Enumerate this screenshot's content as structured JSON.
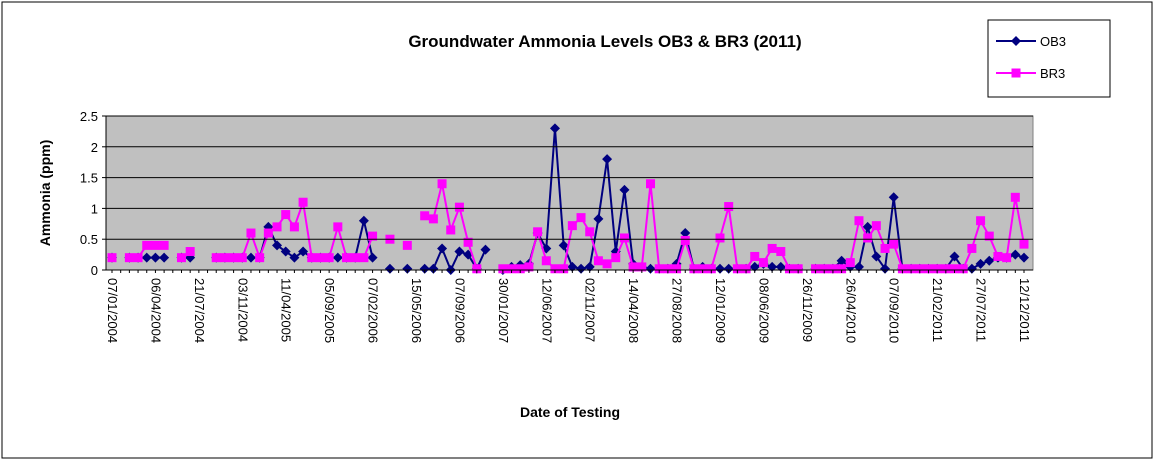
{
  "chart_data": {
    "type": "line",
    "title": "Groundwater Ammonia Levels OB3 & BR3 (2011)",
    "y_label": "Ammonia (ppm)",
    "x_label": "Date of Testing",
    "categories": [
      "07/01/2004",
      null,
      null,
      null,
      null,
      "06/04/2004",
      null,
      null,
      null,
      null,
      "21/07/2004",
      null,
      null,
      null,
      null,
      "03/11/2004",
      null,
      null,
      null,
      null,
      "11/04/2005",
      null,
      null,
      null,
      null,
      "05/09/2005",
      null,
      null,
      null,
      null,
      "07/02/2006",
      null,
      null,
      null,
      null,
      "15/05/2006",
      null,
      null,
      null,
      null,
      "07/09/2006",
      null,
      null,
      null,
      null,
      "30/01/2007",
      null,
      null,
      null,
      null,
      "12/06/2007",
      null,
      null,
      null,
      null,
      "02/11/2007",
      null,
      null,
      null,
      null,
      "14/04/2008",
      null,
      null,
      null,
      null,
      "27/08/2008",
      null,
      null,
      null,
      null,
      "12/01/2009",
      null,
      null,
      null,
      null,
      "08/06/2009",
      null,
      null,
      null,
      null,
      "26/11/2009",
      null,
      null,
      null,
      null,
      "26/04/2010",
      null,
      null,
      null,
      null,
      "07/09/2010",
      null,
      null,
      null,
      null,
      "21/02/2011",
      null,
      null,
      null,
      null,
      "27/07/2011",
      null,
      null,
      null,
      null,
      "12/12/2011"
    ],
    "series": [
      {
        "name": "OB3",
        "color": "#000080",
        "marker": "diamond",
        "values": [
          0.2,
          null,
          0.2,
          0.2,
          0.2,
          0.2,
          0.2,
          null,
          0.2,
          0.2,
          null,
          null,
          0.2,
          0.2,
          0.2,
          0.2,
          0.2,
          0.2,
          0.7,
          0.4,
          0.3,
          0.2,
          0.3,
          0.2,
          0.2,
          0.2,
          0.2,
          0.2,
          0.2,
          0.8,
          0.2,
          null,
          0.02,
          null,
          0.02,
          null,
          0.02,
          0.02,
          0.35,
          0.0,
          0.3,
          0.25,
          0.02,
          0.33,
          null,
          0.0,
          0.05,
          0.08,
          0.1,
          0.6,
          0.35,
          2.3,
          0.4,
          0.05,
          0.02,
          0.05,
          0.83,
          1.8,
          0.3,
          1.3,
          0.1,
          0.05,
          0.02,
          0.02,
          0.02,
          0.1,
          0.6,
          0.02,
          0.05,
          0.02,
          0.02,
          0.02,
          0.02,
          0.02,
          0.05,
          0.1,
          0.05,
          0.05,
          0.02,
          0.02,
          null,
          0.02,
          0.02,
          0.02,
          0.15,
          0.05,
          0.05,
          0.7,
          0.22,
          0.02,
          1.18,
          0.02,
          0.02,
          0.02,
          0.02,
          0.02,
          0.02,
          0.22,
          0.02,
          0.02,
          0.1,
          0.15,
          0.2,
          0.2,
          0.25,
          0.2
        ]
      },
      {
        "name": "BR3",
        "color": "#ff00ff",
        "marker": "square",
        "values": [
          0.2,
          null,
          0.2,
          0.2,
          0.4,
          0.4,
          0.4,
          null,
          0.2,
          0.3,
          null,
          null,
          0.2,
          0.2,
          0.2,
          0.2,
          0.6,
          0.2,
          0.6,
          0.7,
          0.9,
          0.7,
          1.1,
          0.2,
          0.2,
          0.2,
          0.7,
          0.2,
          0.2,
          0.2,
          0.55,
          null,
          0.5,
          null,
          0.4,
          null,
          0.88,
          0.83,
          1.4,
          0.65,
          1.02,
          0.45,
          0.02,
          null,
          null,
          0.02,
          0.02,
          0.02,
          0.05,
          0.62,
          0.15,
          0.02,
          0.02,
          0.72,
          0.85,
          0.62,
          0.15,
          0.1,
          0.2,
          0.52,
          0.05,
          0.05,
          1.4,
          0.02,
          0.02,
          0.02,
          0.48,
          0.02,
          0.02,
          0.02,
          0.52,
          1.03,
          0.02,
          0.02,
          0.22,
          0.12,
          0.35,
          0.3,
          0.02,
          0.02,
          null,
          0.02,
          0.02,
          0.02,
          0.02,
          0.12,
          0.8,
          0.52,
          0.72,
          0.35,
          0.42,
          0.02,
          0.02,
          0.02,
          0.02,
          0.02,
          0.02,
          0.02,
          0.02,
          0.35,
          0.8,
          0.55,
          0.22,
          0.2,
          1.18,
          0.42
        ]
      }
    ],
    "ylim": [
      0,
      2.5
    ],
    "yticks": [
      0,
      0.5,
      1,
      1.5,
      2,
      2.5
    ],
    "grid": true,
    "legend": "top-right"
  }
}
